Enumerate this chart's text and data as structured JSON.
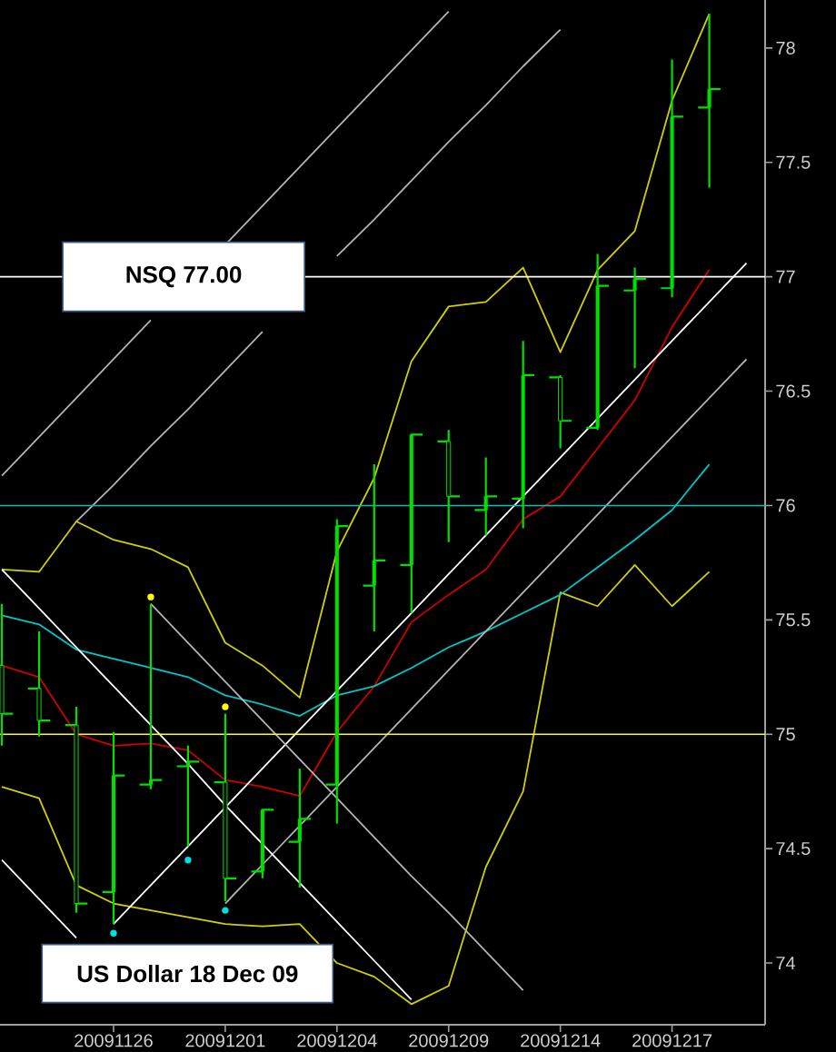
{
  "chart_data": {
    "type": "candlestick",
    "title": "US Dollar 18 Dec 09",
    "color": "#00e000",
    "marker": "none",
    "categories": [
      null,
      null,
      null,
      "20091126",
      null,
      null,
      "20091201",
      null,
      null,
      "20091204",
      null,
      null,
      "20091209",
      null,
      null,
      "20091214",
      null,
      null,
      "20091217",
      null,
      null
    ],
    "ohlc": [
      [
        75.3,
        75.57,
        74.95,
        75.09
      ],
      [
        75.2,
        75.45,
        74.99,
        75.06
      ],
      [
        75.04,
        75.12,
        74.22,
        74.26
      ],
      [
        74.31,
        75.01,
        74.17,
        74.82
      ],
      [
        74.78,
        75.57,
        74.76,
        74.8
      ],
      [
        74.86,
        74.95,
        74.51,
        74.88
      ],
      [
        74.79,
        75.09,
        74.27,
        74.37
      ],
      [
        74.4,
        74.67,
        74.37,
        74.67
      ],
      [
        74.53,
        74.85,
        74.33,
        74.63
      ],
      [
        74.78,
        75.94,
        74.61,
        75.91
      ],
      [
        75.65,
        76.18,
        75.45,
        75.76
      ],
      [
        75.74,
        76.31,
        75.53,
        76.31
      ],
      [
        76.28,
        76.33,
        75.84,
        76.04
      ],
      [
        75.98,
        76.21,
        75.87,
        76.04
      ],
      [
        76.03,
        76.72,
        75.9,
        76.57
      ],
      [
        76.56,
        76.57,
        76.25,
        76.37
      ],
      [
        76.34,
        77.1,
        76.33,
        76.96
      ],
      [
        76.94,
        77.04,
        76.6,
        76.99
      ],
      [
        76.95,
        77.95,
        76.91,
        77.7
      ],
      [
        77.74,
        78.15,
        77.39,
        77.82
      ],
      null
    ],
    "series": [
      {
        "type": "line",
        "color": "#d0d000",
        "values": [
          75.72,
          75.71,
          75.93,
          75.85,
          75.81,
          75.73,
          75.4,
          75.3,
          75.16,
          75.8,
          76.12,
          76.63,
          76.87,
          76.89,
          77.04,
          76.67,
          77.03,
          77.2,
          77.77,
          78.15,
          null
        ]
      },
      {
        "type": "line",
        "color": "#d0d000",
        "values": [
          74.77,
          74.72,
          74.34,
          74.26,
          74.23,
          74.2,
          74.17,
          74.16,
          74.17,
          74.0,
          73.94,
          73.82,
          73.9,
          74.42,
          74.75,
          75.62,
          75.56,
          75.74,
          75.56,
          75.71,
          null
        ]
      },
      {
        "type": "line",
        "color": "#d00000",
        "values": [
          75.3,
          75.25,
          75.0,
          74.95,
          74.96,
          74.93,
          74.8,
          74.77,
          74.73,
          75.01,
          75.21,
          75.49,
          75.61,
          75.72,
          75.94,
          76.04,
          76.25,
          76.46,
          76.78,
          77.03,
          null
        ]
      },
      {
        "type": "line",
        "color": "#00c8c8",
        "values": [
          75.52,
          75.48,
          75.37,
          75.33,
          75.29,
          75.25,
          75.17,
          75.13,
          75.08,
          75.17,
          75.21,
          75.29,
          75.38,
          75.45,
          75.53,
          75.61,
          75.73,
          75.85,
          75.98,
          76.18,
          null
        ]
      },
      {
        "type": "line",
        "color": "#b4b4b4",
        "values": [
          76.13,
          76.3,
          76.47,
          76.64,
          76.81,
          null,
          77.14,
          77.31,
          77.48,
          77.65,
          77.82,
          77.99,
          78.16,
          null,
          null,
          null,
          null,
          null,
          null,
          null,
          null
        ]
      },
      {
        "type": "line",
        "color": "#b4b4b4",
        "values": [
          null,
          null,
          75.93,
          76.09,
          76.26,
          76.42,
          76.59,
          76.76,
          null,
          77.09,
          77.25,
          77.42,
          77.59,
          77.75,
          77.92,
          78.08,
          null,
          null,
          null,
          null,
          null
        ]
      },
      {
        "type": "line",
        "color": "#ffffff",
        "values": [
          null,
          null,
          null,
          74.17,
          74.34,
          74.51,
          74.68,
          74.85,
          75.02,
          75.19,
          75.36,
          75.53,
          75.7,
          75.87,
          76.04,
          76.21,
          76.38,
          76.55,
          76.72,
          76.89,
          77.06
        ]
      },
      {
        "type": "line",
        "color": "#b4b4b4",
        "values": [
          null,
          null,
          null,
          null,
          null,
          null,
          74.26,
          74.43,
          74.6,
          74.77,
          74.94,
          75.11,
          75.28,
          75.45,
          75.62,
          75.79,
          75.96,
          76.13,
          76.3,
          76.47,
          76.64
        ]
      },
      {
        "type": "line",
        "color": "#ffffff",
        "values": [
          75.72,
          75.55,
          75.38,
          75.21,
          75.04,
          74.87,
          74.69,
          74.52,
          74.35,
          74.18,
          74.01,
          73.84,
          null,
          null,
          null,
          null,
          null,
          null,
          null,
          null,
          null
        ]
      },
      {
        "type": "line",
        "color": "#b4b4b4",
        "values": [
          null,
          null,
          null,
          null,
          75.57,
          75.4,
          75.23,
          75.06,
          74.89,
          74.72,
          74.55,
          74.38,
          74.22,
          74.05,
          73.88,
          null,
          null,
          null,
          null,
          null,
          null
        ]
      },
      {
        "type": "line",
        "color": "#ffffff",
        "values": [
          74.45,
          74.28,
          74.11,
          null,
          null,
          null,
          null,
          null,
          null,
          null,
          null,
          null,
          null,
          null,
          null,
          null,
          null,
          null,
          null,
          null,
          null
        ]
      },
      {
        "type": "scatter",
        "marker": "circle",
        "color": "#ffff00",
        "values": [
          null,
          null,
          null,
          null,
          75.6,
          null,
          75.12,
          null,
          null,
          null,
          null,
          null,
          null,
          null,
          null,
          null,
          null,
          null,
          null,
          null,
          null
        ]
      },
      {
        "type": "scatter",
        "marker": "circle",
        "color": "#00e0e0",
        "values": [
          null,
          null,
          null,
          74.13,
          null,
          74.45,
          74.23,
          null,
          null,
          null,
          null,
          null,
          null,
          null,
          null,
          null,
          null,
          null,
          null,
          null,
          null
        ]
      }
    ],
    "ref_lines": [
      {
        "axis": "y",
        "value": 77,
        "label": "NSQ 77.00",
        "color": "#ffffff"
      },
      {
        "axis": "y",
        "value": 76,
        "color": "#00c0c0"
      },
      {
        "axis": "y",
        "value": 75,
        "color": "#ffff00"
      }
    ],
    "ylim": [
      73.73,
      78.21
    ],
    "yticks": [
      74,
      74.5,
      75,
      75.5,
      76,
      76.5,
      77,
      77.5,
      78
    ]
  }
}
